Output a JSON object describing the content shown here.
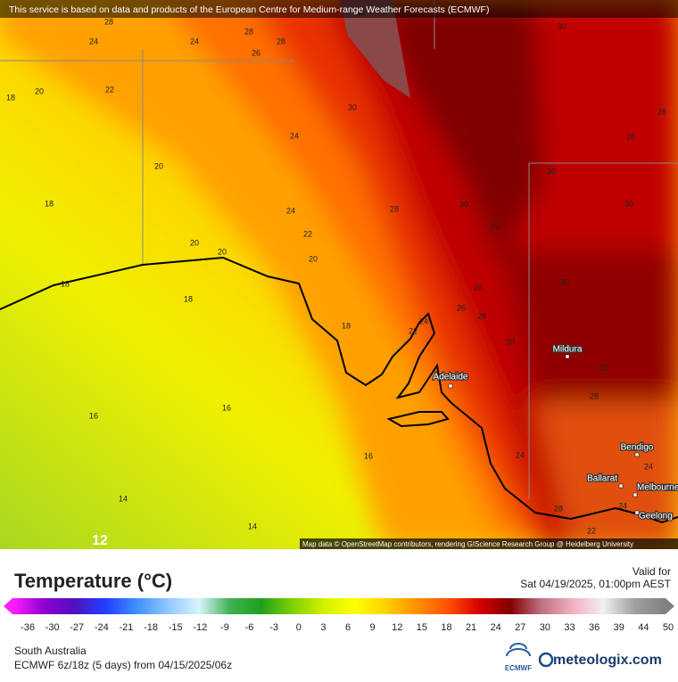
{
  "banner": "This service is based on data and products of the European Centre for Medium-range Weather Forecasts (ECMWF)",
  "attribution": "Map data © OpenStreetMap contributors, rendering GIScience Research Group @ Heidelberg University",
  "map": {
    "contour_labels": [
      28,
      24,
      24,
      28,
      28,
      30,
      26,
      20,
      22,
      18,
      30,
      28,
      28,
      24,
      20,
      30,
      18,
      24,
      28,
      30,
      32,
      30,
      22,
      20,
      20,
      20,
      18,
      18,
      26,
      30,
      24,
      26,
      28,
      18,
      22,
      30,
      32,
      16,
      16,
      28,
      16,
      24,
      24,
      14,
      24,
      28,
      14,
      22,
      12,
      34
    ],
    "cities": [
      "Adelaide",
      "Mildura",
      "Bendigo",
      "Ballarat",
      "Melbourne",
      "Geelong"
    ]
  },
  "legend": {
    "title": "Temperature (°C)",
    "valid_label": "Valid for",
    "valid_time": "Sat 04/19/2025, 01:00pm AEST",
    "ticks": [
      -36,
      -30,
      -27,
      -24,
      -21,
      -18,
      -15,
      -12,
      -9,
      -6,
      -3,
      0,
      3,
      6,
      9,
      12,
      15,
      18,
      21,
      24,
      27,
      30,
      33,
      36,
      39,
      44,
      50
    ],
    "colors": [
      "#ff20ff",
      "#9000d0",
      "#5010c0",
      "#2040ff",
      "#4090ff",
      "#90c8ff",
      "#d8f4ff",
      "#40b050",
      "#20a020",
      "#80d000",
      "#d0f000",
      "#ffff00",
      "#ffd000",
      "#ff9000",
      "#ff5000",
      "#d80000",
      "#800000",
      "#c07080",
      "#f0b0c0",
      "#f0f0f0",
      "#a0a0a0",
      "#808080"
    ]
  },
  "footer": {
    "region": "South Australia",
    "model": "ECMWF 6z/18z (5 days) from 04/15/2025/06z",
    "logo_left": "ECMWF",
    "logo_right": "meteologix.com"
  }
}
